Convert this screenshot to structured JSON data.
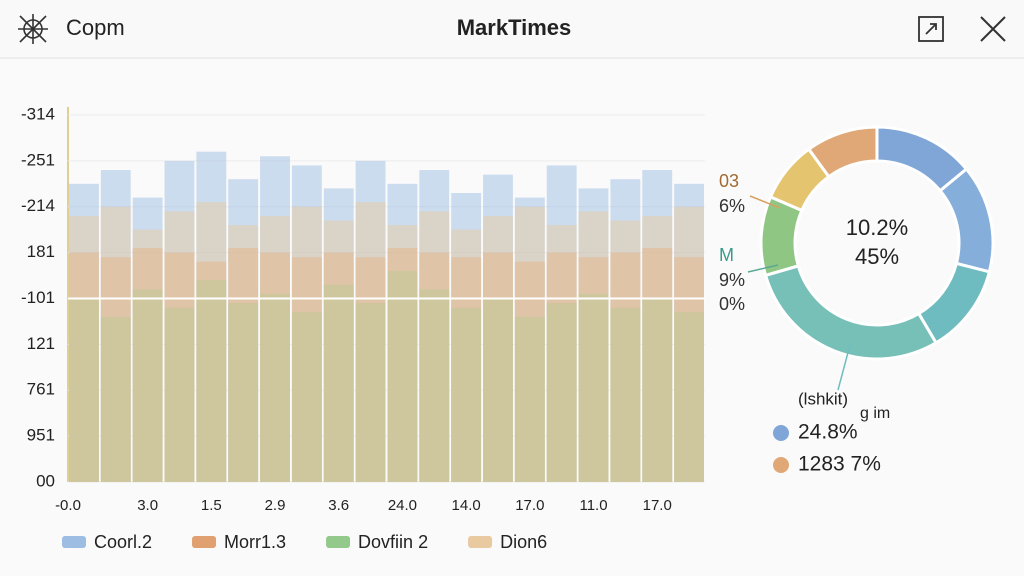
{
  "window": {
    "app_name": "Copm",
    "title": "MarkTimes"
  },
  "chart_data": [
    {
      "type": "bar",
      "yticks": [
        {
          "value": 8,
          "label": "-314"
        },
        {
          "value": 7,
          "label": "-251"
        },
        {
          "value": 6,
          "label": "-214"
        },
        {
          "value": 5,
          "label": "181"
        },
        {
          "value": 4,
          "label": "-101"
        },
        {
          "value": 3,
          "label": "121"
        },
        {
          "value": 2,
          "label": "761"
        },
        {
          "value": 1,
          "label": "951"
        },
        {
          "value": 0,
          "label": "00"
        }
      ],
      "ylim": [
        0,
        8
      ],
      "categories": [
        "-0.0",
        null,
        "3.0",
        null,
        "1.5",
        null,
        "2.9",
        null,
        "3.6",
        null,
        "24.0",
        null,
        "14.0",
        null,
        "17.0",
        null,
        "11.0",
        null,
        "17.0",
        null
      ],
      "series": [
        {
          "name": "Coorl.2",
          "color": "#9dbde3",
          "values": [
            6.5,
            6.8,
            6.2,
            7.0,
            7.2,
            6.6,
            7.1,
            6.9,
            6.4,
            7.0,
            6.5,
            6.8,
            6.3,
            6.7,
            6.2,
            6.9,
            6.4,
            6.6,
            6.8,
            6.5
          ]
        },
        {
          "name": "Morr1.3",
          "color": "#e0a070",
          "values": [
            5.0,
            4.9,
            5.1,
            5.0,
            4.8,
            5.1,
            5.0,
            4.9,
            5.0,
            4.9,
            5.1,
            5.0,
            4.9,
            5.0,
            4.8,
            5.0,
            4.9,
            5.0,
            5.1,
            4.9
          ]
        },
        {
          "name": "Dovfiin 2",
          "color": "#93c98a",
          "values": [
            4.0,
            3.6,
            4.2,
            3.8,
            4.4,
            3.9,
            4.1,
            3.7,
            4.3,
            3.9,
            4.6,
            4.2,
            3.8,
            4.0,
            3.6,
            3.9,
            4.1,
            3.8,
            4.0,
            3.7
          ]
        },
        {
          "name": "Dion6",
          "color": "#e8c9a0",
          "values": [
            5.8,
            6.0,
            5.5,
            5.9,
            6.1,
            5.6,
            5.8,
            6.0,
            5.7,
            6.1,
            5.6,
            5.9,
            5.5,
            5.8,
            6.0,
            5.6,
            5.9,
            5.7,
            5.8,
            6.0
          ]
        }
      ]
    },
    {
      "type": "donut",
      "values": [
        14,
        15,
        12.5,
        29,
        11,
        8.5,
        10
      ],
      "colors": [
        "#7fa6d6",
        "#85aedb",
        "#6fbcc0",
        "#76c0b8",
        "#8fc684",
        "#e5c46f",
        "#e1a877"
      ],
      "center_labels": [
        "10.2%",
        "45%"
      ],
      "annotations": [
        "03",
        "6%",
        "M",
        "9%",
        "0%"
      ],
      "legend_title": "(lshkit)",
      "legend_note": "g im",
      "legend": [
        {
          "color": "#7fa6d6",
          "label": "24.8%"
        },
        {
          "color": "#e1a877",
          "label": "1283 7%"
        }
      ]
    }
  ]
}
